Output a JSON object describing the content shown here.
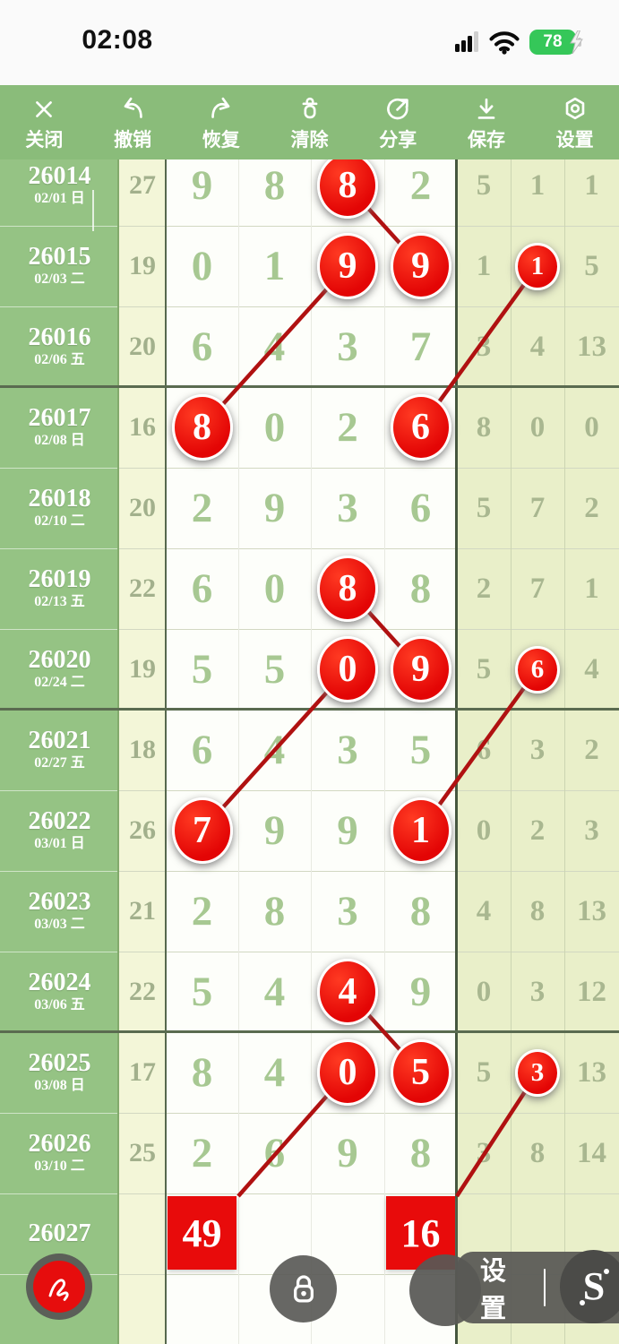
{
  "status_bar": {
    "time": "02:08",
    "battery_percent": "78",
    "signal_bars": 4,
    "wifi": true,
    "charging": true
  },
  "toolbar": {
    "items": [
      {
        "id": "close",
        "label": "关闭"
      },
      {
        "id": "undo",
        "label": "撤销"
      },
      {
        "id": "redo",
        "label": "恢复"
      },
      {
        "id": "clear",
        "label": "清除"
      },
      {
        "id": "share",
        "label": "分享"
      },
      {
        "id": "save",
        "label": "保存"
      },
      {
        "id": "settings",
        "label": "设置"
      }
    ]
  },
  "table": {
    "rows": [
      {
        "period": "26014",
        "date": "02/01 日",
        "sum": "27",
        "digits": [
          {
            "v": "9"
          },
          {
            "v": "8"
          },
          {
            "v": "8",
            "marked": true
          },
          {
            "v": "2"
          }
        ],
        "extras": [
          {
            "v": "5"
          },
          {
            "v": "1"
          },
          {
            "v": "1"
          }
        ]
      },
      {
        "period": "26015",
        "date": "02/03 二",
        "sum": "19",
        "digits": [
          {
            "v": "0"
          },
          {
            "v": "1"
          },
          {
            "v": "9",
            "marked": true
          },
          {
            "v": "9",
            "marked": true
          }
        ],
        "extras": [
          {
            "v": "1"
          },
          {
            "v": "1",
            "marked": true
          },
          {
            "v": "5"
          }
        ]
      },
      {
        "period": "26016",
        "date": "02/06 五",
        "sum": "20",
        "digits": [
          {
            "v": "6"
          },
          {
            "v": "4"
          },
          {
            "v": "3"
          },
          {
            "v": "7"
          }
        ],
        "extras": [
          {
            "v": "3"
          },
          {
            "v": "4"
          },
          {
            "v": "13"
          }
        ],
        "section_end": true
      },
      {
        "period": "26017",
        "date": "02/08 日",
        "sum": "16",
        "digits": [
          {
            "v": "8",
            "marked": true
          },
          {
            "v": "0"
          },
          {
            "v": "2"
          },
          {
            "v": "6",
            "marked": true
          }
        ],
        "extras": [
          {
            "v": "8"
          },
          {
            "v": "0"
          },
          {
            "v": "0"
          }
        ]
      },
      {
        "period": "26018",
        "date": "02/10 二",
        "sum": "20",
        "digits": [
          {
            "v": "2"
          },
          {
            "v": "9"
          },
          {
            "v": "3"
          },
          {
            "v": "6"
          }
        ],
        "extras": [
          {
            "v": "5"
          },
          {
            "v": "7"
          },
          {
            "v": "2"
          }
        ]
      },
      {
        "period": "26019",
        "date": "02/13 五",
        "sum": "22",
        "digits": [
          {
            "v": "6"
          },
          {
            "v": "0"
          },
          {
            "v": "8",
            "marked": true
          },
          {
            "v": "8"
          }
        ],
        "extras": [
          {
            "v": "2"
          },
          {
            "v": "7"
          },
          {
            "v": "1"
          }
        ]
      },
      {
        "period": "26020",
        "date": "02/24 二",
        "sum": "19",
        "digits": [
          {
            "v": "5"
          },
          {
            "v": "5"
          },
          {
            "v": "0",
            "marked": true
          },
          {
            "v": "9",
            "marked": true
          }
        ],
        "extras": [
          {
            "v": "5"
          },
          {
            "v": "6",
            "marked": true
          },
          {
            "v": "4"
          }
        ],
        "section_end": true
      },
      {
        "period": "26021",
        "date": "02/27 五",
        "sum": "18",
        "digits": [
          {
            "v": "6"
          },
          {
            "v": "4"
          },
          {
            "v": "3"
          },
          {
            "v": "5"
          }
        ],
        "extras": [
          {
            "v": "6"
          },
          {
            "v": "3"
          },
          {
            "v": "2"
          }
        ]
      },
      {
        "period": "26022",
        "date": "03/01 日",
        "sum": "26",
        "digits": [
          {
            "v": "7",
            "marked": true
          },
          {
            "v": "9"
          },
          {
            "v": "9"
          },
          {
            "v": "1",
            "marked": true
          }
        ],
        "extras": [
          {
            "v": "0"
          },
          {
            "v": "2"
          },
          {
            "v": "3"
          }
        ]
      },
      {
        "period": "26023",
        "date": "03/03 二",
        "sum": "21",
        "digits": [
          {
            "v": "2"
          },
          {
            "v": "8"
          },
          {
            "v": "3"
          },
          {
            "v": "8"
          }
        ],
        "extras": [
          {
            "v": "4"
          },
          {
            "v": "8"
          },
          {
            "v": "13"
          }
        ]
      },
      {
        "period": "26024",
        "date": "03/06 五",
        "sum": "22",
        "digits": [
          {
            "v": "5"
          },
          {
            "v": "4"
          },
          {
            "v": "4",
            "marked": true
          },
          {
            "v": "9"
          }
        ],
        "extras": [
          {
            "v": "0"
          },
          {
            "v": "3"
          },
          {
            "v": "12"
          }
        ],
        "section_end": true
      },
      {
        "period": "26025",
        "date": "03/08 日",
        "sum": "17",
        "digits": [
          {
            "v": "8"
          },
          {
            "v": "4"
          },
          {
            "v": "0",
            "marked": true
          },
          {
            "v": "5",
            "marked": true
          }
        ],
        "extras": [
          {
            "v": "5"
          },
          {
            "v": "3",
            "marked": true
          },
          {
            "v": "13"
          }
        ]
      },
      {
        "period": "26026",
        "date": "03/10 二",
        "sum": "25",
        "digits": [
          {
            "v": "2"
          },
          {
            "v": "6"
          },
          {
            "v": "9"
          },
          {
            "v": "8"
          }
        ],
        "extras": [
          {
            "v": "3"
          },
          {
            "v": "8"
          },
          {
            "v": "14"
          }
        ]
      }
    ],
    "pending_row": {
      "period": "26027",
      "boxes": [
        {
          "col": 0,
          "value": "49"
        },
        {
          "col": 3,
          "value": "16"
        }
      ]
    }
  },
  "trend_lines": [
    {
      "from": {
        "row": 0,
        "cell": "d2"
      },
      "to": {
        "row": 1,
        "cell": "d3"
      }
    },
    {
      "from": {
        "row": 1,
        "cell": "d2"
      },
      "to": {
        "row": 3,
        "cell": "d0"
      }
    },
    {
      "from": {
        "row": 1,
        "cell": "e1"
      },
      "to": {
        "row": 3,
        "cell": "d3"
      }
    },
    {
      "from": {
        "row": 5,
        "cell": "d2"
      },
      "to": {
        "row": 6,
        "cell": "d3"
      }
    },
    {
      "from": {
        "row": 6,
        "cell": "d2"
      },
      "to": {
        "row": 8,
        "cell": "d0"
      }
    },
    {
      "from": {
        "row": 6,
        "cell": "e1"
      },
      "to": {
        "row": 8,
        "cell": "d3"
      }
    },
    {
      "from": {
        "row": 10,
        "cell": "d2"
      },
      "to": {
        "row": 11,
        "cell": "d3"
      }
    },
    {
      "from": {
        "row": 11,
        "cell": "d2"
      },
      "to": {
        "row": 13,
        "cell": "box0"
      }
    },
    {
      "from": {
        "row": 11,
        "cell": "e1"
      },
      "to": {
        "row": 13,
        "cell": "box1"
      }
    }
  ],
  "bottom_bar": {
    "settings_label": "设置",
    "tool_label": "S"
  },
  "colors": {
    "toolbar_green": "#8abc7a",
    "label_green": "#95c384",
    "sum_bg": "#f3f6d8",
    "extras_bg": "#e9efc9",
    "cell_white": "#fdfefa",
    "digit_green": "#a7c892",
    "marker_red": "#e30505",
    "line_red": "#b01111",
    "box_red": "#e80b0b",
    "battery_green": "#35c759",
    "section_line": "#5a6b50"
  }
}
